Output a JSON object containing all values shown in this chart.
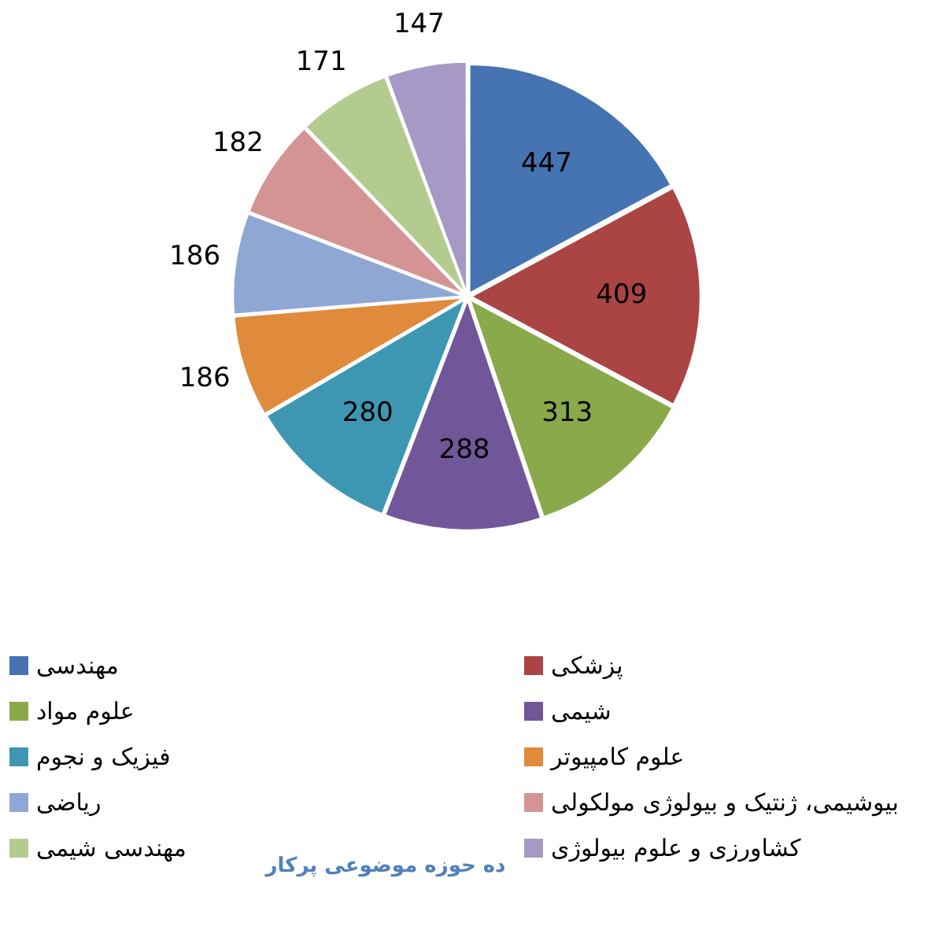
{
  "chart_data": {
    "type": "pie",
    "title": "ده حوزه موضوعی پرکار",
    "categories": [
      "مهندسی",
      "پزشکی",
      "علوم مواد",
      "شیمی",
      "فیزیک و نجوم",
      "علوم کامپیوتر",
      "ریاضی",
      "بیوشیمی، ژنتیک و بیولوژی مولکولی",
      "مهندسی شیمی",
      "کشاورزی و علوم بیولوژی"
    ],
    "values": [
      447,
      409,
      313,
      288,
      280,
      186,
      186,
      182,
      171,
      147
    ],
    "colors": [
      "#4673b1",
      "#aa4543",
      "#89a94b",
      "#71569a",
      "#3d97b3",
      "#e08a3c",
      "#8fa7d5",
      "#d49493",
      "#b4cb90",
      "#a699c5"
    ],
    "data_labels": true,
    "legend": "bottom"
  }
}
